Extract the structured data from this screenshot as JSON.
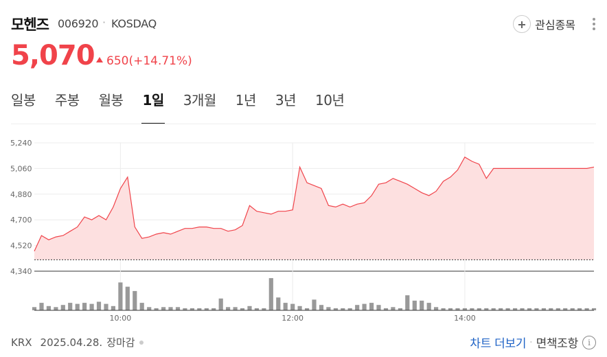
{
  "stock": {
    "name": "모헨즈",
    "code": "006920",
    "market": "KOSDAQ"
  },
  "watch_label": "관심종목",
  "price": "5,070",
  "change": {
    "amount": "650",
    "percent": "(+14.71%)",
    "direction": "up"
  },
  "tabs": [
    "일봉",
    "주봉",
    "월봉",
    "1일",
    "3개월",
    "1년",
    "3년",
    "10년"
  ],
  "active_tab": "1일",
  "footer": {
    "exchange": "KRX",
    "date": "2025.04.28.",
    "status": "장마감",
    "chart_more": "차트 더보기",
    "disclaimer": "면책조항"
  },
  "icons": [
    "plus-icon",
    "more-vertical-icon",
    "up-triangle-icon",
    "info-icon"
  ],
  "colors": {
    "accent": "#f0434a",
    "link": "#1f63c6",
    "area_fill": "#fde0e0",
    "volume": "#999999"
  },
  "chart_data": {
    "type": "area",
    "x_ticks": [
      "10:00",
      "12:00",
      "14:00"
    ],
    "y_ticks": [
      "5,240",
      "5,060",
      "4,880",
      "4,700",
      "4,520",
      "4,340"
    ],
    "ylim": [
      4340,
      5240
    ],
    "prev_close": 4420,
    "x": [
      "09:00",
      "09:05",
      "09:10",
      "09:15",
      "09:20",
      "09:25",
      "09:30",
      "09:35",
      "09:40",
      "09:45",
      "09:50",
      "09:55",
      "10:00",
      "10:05",
      "10:10",
      "10:15",
      "10:20",
      "10:25",
      "10:30",
      "10:35",
      "10:40",
      "10:45",
      "10:50",
      "10:55",
      "11:00",
      "11:05",
      "11:10",
      "11:15",
      "11:20",
      "11:25",
      "11:30",
      "11:35",
      "11:40",
      "11:45",
      "11:50",
      "11:55",
      "12:00",
      "12:05",
      "12:10",
      "12:15",
      "12:20",
      "12:25",
      "12:30",
      "12:35",
      "12:40",
      "12:45",
      "12:50",
      "12:55",
      "13:00",
      "13:05",
      "13:10",
      "13:15",
      "13:20",
      "13:25",
      "13:30",
      "13:35",
      "13:40",
      "13:45",
      "13:50",
      "13:55",
      "14:00",
      "14:05",
      "14:10",
      "14:15",
      "14:20",
      "14:25",
      "14:30",
      "14:35",
      "14:40",
      "14:45",
      "14:50",
      "14:55",
      "15:00",
      "15:05",
      "15:10",
      "15:15",
      "15:20",
      "15:25",
      "15:30"
    ],
    "values": [
      4480,
      4590,
      4560,
      4580,
      4590,
      4620,
      4650,
      4720,
      4700,
      4730,
      4700,
      4790,
      4920,
      5000,
      4650,
      4570,
      4580,
      4600,
      4610,
      4600,
      4620,
      4640,
      4640,
      4650,
      4650,
      4640,
      4640,
      4620,
      4630,
      4660,
      4800,
      4760,
      4750,
      4740,
      4760,
      4760,
      4770,
      5070,
      4960,
      4940,
      4920,
      4800,
      4790,
      4810,
      4790,
      4810,
      4820,
      4870,
      4950,
      4960,
      4990,
      4970,
      4950,
      4920,
      4890,
      4870,
      4900,
      4970,
      5000,
      5050,
      5140,
      5110,
      5090,
      4990,
      5060,
      5060,
      5060,
      5060,
      5060,
      5060,
      5060,
      5060,
      5060,
      5060,
      5060,
      5060,
      5060,
      5060,
      5070
    ],
    "volume": [
      3,
      7,
      4,
      3,
      5,
      7,
      6,
      7,
      6,
      8,
      6,
      4,
      26,
      22,
      18,
      7,
      3,
      2,
      3,
      3,
      3,
      2,
      2,
      2,
      2,
      2,
      11,
      3,
      3,
      2,
      4,
      2,
      2,
      30,
      12,
      7,
      6,
      4,
      2,
      10,
      5,
      3,
      2,
      2,
      2,
      5,
      6,
      7,
      5,
      2,
      3,
      2,
      14,
      9,
      9,
      7,
      3,
      2,
      2,
      2,
      2,
      2,
      2,
      2,
      2,
      2,
      2,
      2,
      2,
      2,
      2,
      2,
      2,
      2,
      2,
      2,
      2,
      2,
      2
    ],
    "volume_ylim": [
      0,
      32
    ],
    "grid": true
  }
}
